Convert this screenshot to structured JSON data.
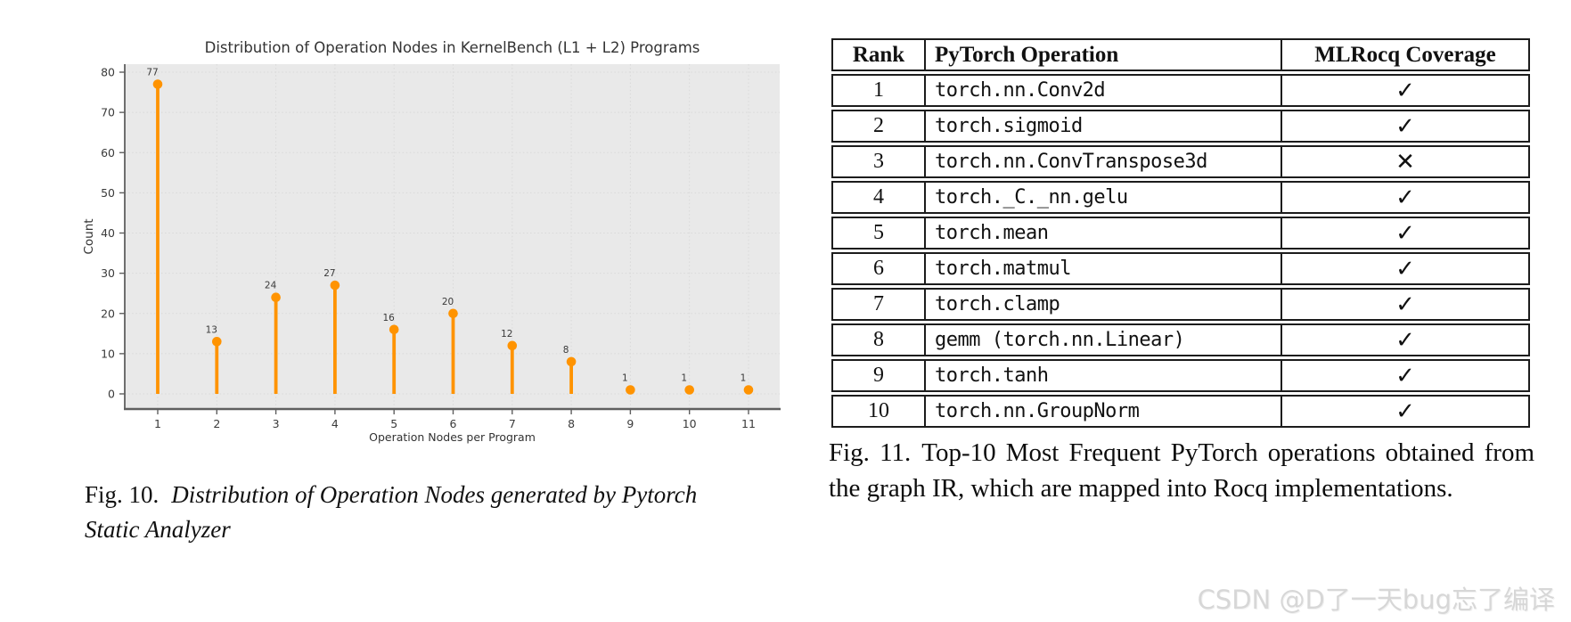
{
  "chart_data": {
    "type": "stem",
    "title": "Distribution of Operation Nodes in KernelBench (L1 + L2) Programs",
    "xlabel": "Operation Nodes per Program",
    "ylabel": "Count",
    "x": [
      1,
      2,
      3,
      4,
      5,
      6,
      7,
      8,
      9,
      10,
      11
    ],
    "values": [
      77,
      13,
      24,
      27,
      16,
      20,
      12,
      8,
      1,
      1,
      1
    ],
    "data_labels": [
      "77",
      "13",
      "24",
      "27",
      "16",
      "20",
      "12",
      "8",
      "1",
      "1",
      "1"
    ],
    "xticks": [
      "1",
      "2",
      "3",
      "4",
      "5",
      "6",
      "7",
      "8",
      "9",
      "10",
      "11"
    ],
    "yticks": [
      0,
      10,
      20,
      30,
      40,
      50,
      60,
      70,
      80
    ],
    "ylim": [
      0,
      80
    ],
    "grid": true,
    "legend": false,
    "stem_color": "#ff9300",
    "plot_bg": "#e9e9e9",
    "grid_color": "#d9d9d9",
    "axis_color": "#5f5f5f",
    "text_color": "#3a3a3a"
  },
  "figure10": {
    "caption_prefix": "Fig. 10.",
    "caption_text": "Distribution of Operation Nodes generated by Pytorch Static Analyzer"
  },
  "figure11": {
    "caption_prefix": "Fig. 11.",
    "caption_text": "Top-10 Most Frequent PyTorch operations obtained from the graph IR, which are mapped into Rocq implementations."
  },
  "table": {
    "headers": [
      "Rank",
      "PyTorch Operation",
      "MLRocq Coverage"
    ],
    "rows": [
      {
        "rank": "1",
        "operation": "torch.nn.Conv2d",
        "coverage": "✓"
      },
      {
        "rank": "2",
        "operation": "torch.sigmoid",
        "coverage": "✓"
      },
      {
        "rank": "3",
        "operation": "torch.nn.ConvTranspose3d",
        "coverage": "✕"
      },
      {
        "rank": "4",
        "operation": "torch._C._nn.gelu",
        "coverage": "✓"
      },
      {
        "rank": "5",
        "operation": "torch.mean",
        "coverage": "✓"
      },
      {
        "rank": "6",
        "operation": "torch.matmul",
        "coverage": "✓"
      },
      {
        "rank": "7",
        "operation": "torch.clamp",
        "coverage": "✓"
      },
      {
        "rank": "8",
        "operation": "gemm (torch.nn.Linear)",
        "coverage": "✓"
      },
      {
        "rank": "9",
        "operation": "torch.tanh",
        "coverage": "✓"
      },
      {
        "rank": "10",
        "operation": "torch.nn.GroupNorm",
        "coverage": "✓"
      }
    ]
  },
  "watermark": {
    "text": "CSDN @D了一天bug忘了编译"
  }
}
